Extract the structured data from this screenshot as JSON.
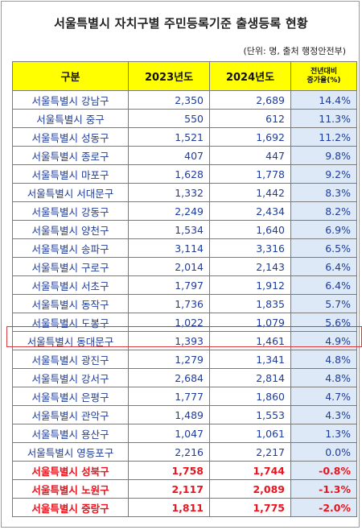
{
  "title": "서울특별시 자치구별 주민등록기준 출생등록 현황",
  "unit_note": "(단위: 명, 출처 행정안전부)",
  "headers": {
    "district": "구분",
    "y2023": "2023년도",
    "y2024": "2024년도",
    "growth_line1": "전년대비",
    "growth_line2": "증가율(%)"
  },
  "rows": [
    {
      "district": "서울특별시 강남구",
      "y2023": "2,350",
      "y2024": "2,689",
      "growth": "14.4%"
    },
    {
      "district": "서울특별시 중구",
      "y2023": "550",
      "y2024": "612",
      "growth": "11.3%"
    },
    {
      "district": "서울특별시 성동구",
      "y2023": "1,521",
      "y2024": "1,692",
      "growth": "11.2%"
    },
    {
      "district": "서울특별시 종로구",
      "y2023": "407",
      "y2024": "447",
      "growth": "9.8%"
    },
    {
      "district": "서울특별시 마포구",
      "y2023": "1,628",
      "y2024": "1,778",
      "growth": "9.2%"
    },
    {
      "district": "서울특별시 서대문구",
      "y2023": "1,332",
      "y2024": "1,442",
      "growth": "8.3%"
    },
    {
      "district": "서울특별시 강동구",
      "y2023": "2,249",
      "y2024": "2,434",
      "growth": "8.2%"
    },
    {
      "district": "서울특별시 양천구",
      "y2023": "1,534",
      "y2024": "1,640",
      "growth": "6.9%"
    },
    {
      "district": "서울특별시 송파구",
      "y2023": "3,114",
      "y2024": "3,316",
      "growth": "6.5%"
    },
    {
      "district": "서울특별시 구로구",
      "y2023": "2,014",
      "y2024": "2,143",
      "growth": "6.4%"
    },
    {
      "district": "서울특별시 서초구",
      "y2023": "1,797",
      "y2024": "1,912",
      "growth": "6.4%"
    },
    {
      "district": "서울특별시 동작구",
      "y2023": "1,736",
      "y2024": "1,835",
      "growth": "5.7%"
    },
    {
      "district": "서울특별시 도봉구",
      "y2023": "1,022",
      "y2024": "1,079",
      "growth": "5.6%"
    },
    {
      "district": "서울특별시 동대문구",
      "y2023": "1,393",
      "y2024": "1,461",
      "growth": "4.9%"
    },
    {
      "district": "서울특별시 광진구",
      "y2023": "1,279",
      "y2024": "1,341",
      "growth": "4.8%"
    },
    {
      "district": "서울특별시 강서구",
      "y2023": "2,684",
      "y2024": "2,814",
      "growth": "4.8%"
    },
    {
      "district": "서울특별시 은평구",
      "y2023": "1,777",
      "y2024": "1,860",
      "growth": "4.7%"
    },
    {
      "district": "서울특별시 관악구",
      "y2023": "1,489",
      "y2024": "1,553",
      "growth": "4.3%"
    },
    {
      "district": "서울특별시 용산구",
      "y2023": "1,047",
      "y2024": "1,061",
      "growth": "1.3%"
    },
    {
      "district": "서울특별시 영등포구",
      "y2023": "2,216",
      "y2024": "2,217",
      "growth": "0.0%"
    },
    {
      "district": "서울특별시 성북구",
      "y2023": "1,758",
      "y2024": "1,744",
      "growth": "-0.8%"
    },
    {
      "district": "서울특별시 노원구",
      "y2023": "2,117",
      "y2024": "2,089",
      "growth": "-1.3%"
    },
    {
      "district": "서울특별시 중랑구",
      "y2023": "1,811",
      "y2024": "1,775",
      "growth": "-2.0%"
    }
  ],
  "highlighted_row": "서울특별시 동대문구",
  "colors": {
    "header_bg": "#ffff00",
    "text_blue": "#1f3d9c",
    "text_red": "#e8141e",
    "growth_bg": "#dde9f6",
    "highlight_border": "#d9393f"
  }
}
